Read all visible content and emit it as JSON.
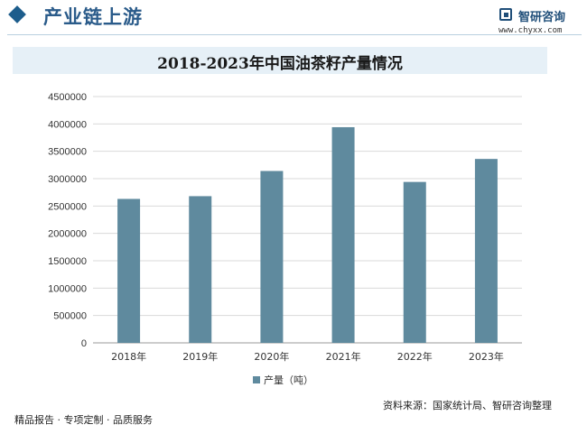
{
  "header": {
    "section_title": "产业链上游",
    "brand_name": "智研咨询",
    "brand_url": "www.chyxx.com"
  },
  "chart_data": {
    "type": "bar",
    "title": "2018-2023年中国油茶籽产量情况",
    "categories": [
      "2018年",
      "2019年",
      "2020年",
      "2021年",
      "2022年",
      "2023年"
    ],
    "series": [
      {
        "name": "产量（吨）",
        "values": [
          2630000,
          2680000,
          3140000,
          3940000,
          2940000,
          3360000
        ]
      }
    ],
    "y_ticks": [
      "0",
      "500000",
      "1000000",
      "1500000",
      "2000000",
      "2500000",
      "3000000",
      "3500000",
      "4000000",
      "4500000"
    ],
    "ylim": [
      0,
      4500000
    ],
    "grid": true,
    "legend_position": "bottom",
    "bar_color": "#5f8a9e"
  },
  "footer": {
    "left": "精品报告 · 专项定制 · 品质服务",
    "source": "资料来源：国家统计局、智研咨询整理"
  }
}
